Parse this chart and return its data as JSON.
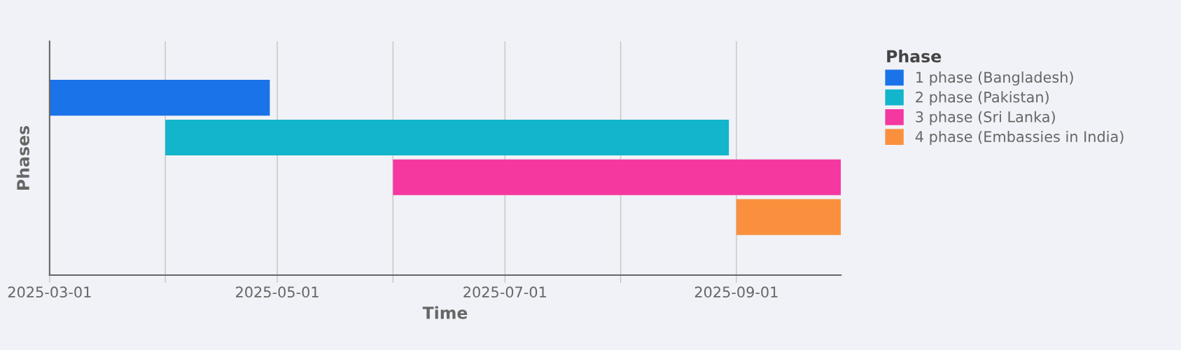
{
  "chart_data": {
    "type": "bar",
    "orientation": "horizontal",
    "xlabel": "Time",
    "ylabel": "Phases",
    "legend_title": "Phase",
    "legend": "right",
    "categories": [
      null,
      null,
      null,
      null
    ],
    "series": [
      {
        "name": "1 phase (Bangladesh)",
        "color": "#1a73e8",
        "base": [
          20148,
          null,
          null,
          null
        ],
        "values": [
          59,
          null,
          null,
          null
        ]
      },
      {
        "name": "2 phase (Pakistan)",
        "color": "#12b5cb",
        "base": [
          null,
          20179,
          null,
          null
        ],
        "values": [
          null,
          151,
          null,
          null
        ]
      },
      {
        "name": "3 phase (Sri Lanka)",
        "color": "#f538a0",
        "base": [
          null,
          null,
          20240,
          null
        ],
        "values": [
          null,
          null,
          120,
          null
        ]
      },
      {
        "name": "4 phase (Embassies in India)",
        "color": "#fa903e",
        "base": [
          null,
          null,
          null,
          20332
        ],
        "values": [
          null,
          null,
          null,
          28
        ]
      }
    ],
    "xlim": [
      "2025-03-01",
      "2025-09-29"
    ],
    "xticks": [
      {
        "value": "2025-03-01",
        "label": "2025-03-01"
      },
      {
        "value": "2025-04-01",
        "label": null
      },
      {
        "value": "2025-05-01",
        "label": "2025-05-01"
      },
      {
        "value": "2025-06-01",
        "label": null
      },
      {
        "value": "2025-07-01",
        "label": "2025-07-01"
      },
      {
        "value": "2025-08-01",
        "label": null
      },
      {
        "value": "2025-09-01",
        "label": "2025-09-01"
      }
    ],
    "grid": "x"
  }
}
